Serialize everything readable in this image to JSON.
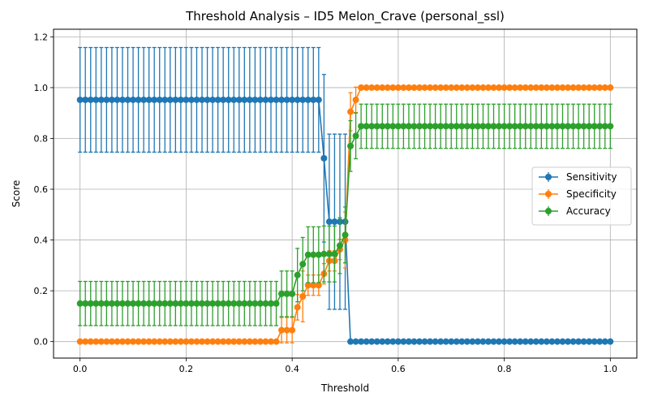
{
  "chart_data": {
    "type": "line",
    "title": "Threshold Analysis – ID5 Melon_Crave (personal_ssl)",
    "xlabel": "Threshold",
    "ylabel": "Score",
    "xlim": [
      -0.05,
      1.05
    ],
    "ylim": [
      -0.065,
      1.23
    ],
    "xticks": [
      0.0,
      0.2,
      0.4,
      0.6,
      0.8,
      1.0
    ],
    "xtick_labels": [
      "0.0",
      "0.2",
      "0.4",
      "0.6",
      "0.8",
      "1.0"
    ],
    "yticks": [
      0.0,
      0.2,
      0.4,
      0.6,
      0.8,
      1.0,
      1.2
    ],
    "ytick_labels": [
      "0.0",
      "0.2",
      "0.4",
      "0.6",
      "0.8",
      "1.0",
      "1.2"
    ],
    "grid": true,
    "legend_position": "center-right",
    "marker": "circle",
    "error_bars": true,
    "x": {
      "start": 0.0,
      "stop": 1.0,
      "step": 0.01
    },
    "series": [
      {
        "name": "Sensitivity",
        "color": "#1f77b4",
        "segments": [
          {
            "from": 0.0,
            "to": 0.45,
            "y": 0.952,
            "err": 0.206
          },
          {
            "from": 0.46,
            "to": 0.46,
            "y": 0.722,
            "err": 0.33
          },
          {
            "from": 0.47,
            "to": 0.5,
            "y": 0.472,
            "err": 0.345
          },
          {
            "from": 0.51,
            "to": 1.0,
            "y": 0.0,
            "err": 0.0
          }
        ]
      },
      {
        "name": "Specificity",
        "color": "#ff7f0e",
        "segments": [
          {
            "from": 0.0,
            "to": 0.37,
            "y": 0.0,
            "err": 0.0
          },
          {
            "from": 0.38,
            "to": 0.4,
            "y": 0.045,
            "err": 0.05
          },
          {
            "from": 0.41,
            "to": 0.41,
            "y": 0.135,
            "err": 0.05
          },
          {
            "from": 0.42,
            "to": 0.42,
            "y": 0.178,
            "err": 0.1
          },
          {
            "from": 0.43,
            "to": 0.45,
            "y": 0.222,
            "err": 0.04
          },
          {
            "from": 0.46,
            "to": 0.46,
            "y": 0.267,
            "err": 0.04
          },
          {
            "from": 0.47,
            "to": 0.48,
            "y": 0.318,
            "err": 0.04
          },
          {
            "from": 0.49,
            "to": 0.49,
            "y": 0.363,
            "err": 0.04
          },
          {
            "from": 0.5,
            "to": 0.5,
            "y": 0.4,
            "err": 0.11
          },
          {
            "from": 0.51,
            "to": 0.51,
            "y": 0.905,
            "err": 0.075
          },
          {
            "from": 0.52,
            "to": 0.52,
            "y": 0.952,
            "err": 0.05
          },
          {
            "from": 0.53,
            "to": 1.0,
            "y": 1.0,
            "err": 0.0
          }
        ]
      },
      {
        "name": "Accuracy",
        "color": "#2ca02c",
        "segments": [
          {
            "from": 0.0,
            "to": 0.37,
            "y": 0.15,
            "err": 0.087
          },
          {
            "from": 0.38,
            "to": 0.4,
            "y": 0.188,
            "err": 0.09
          },
          {
            "from": 0.41,
            "to": 0.41,
            "y": 0.262,
            "err": 0.105
          },
          {
            "from": 0.42,
            "to": 0.42,
            "y": 0.305,
            "err": 0.105
          },
          {
            "from": 0.43,
            "to": 0.45,
            "y": 0.342,
            "err": 0.11
          },
          {
            "from": 0.46,
            "to": 0.48,
            "y": 0.345,
            "err": 0.11
          },
          {
            "from": 0.49,
            "to": 0.49,
            "y": 0.378,
            "err": 0.11
          },
          {
            "from": 0.5,
            "to": 0.5,
            "y": 0.42,
            "err": 0.11
          },
          {
            "from": 0.51,
            "to": 0.51,
            "y": 0.77,
            "err": 0.1
          },
          {
            "from": 0.52,
            "to": 0.52,
            "y": 0.81,
            "err": 0.09
          },
          {
            "from": 0.53,
            "to": 1.0,
            "y": 0.848,
            "err": 0.087
          }
        ]
      }
    ]
  }
}
